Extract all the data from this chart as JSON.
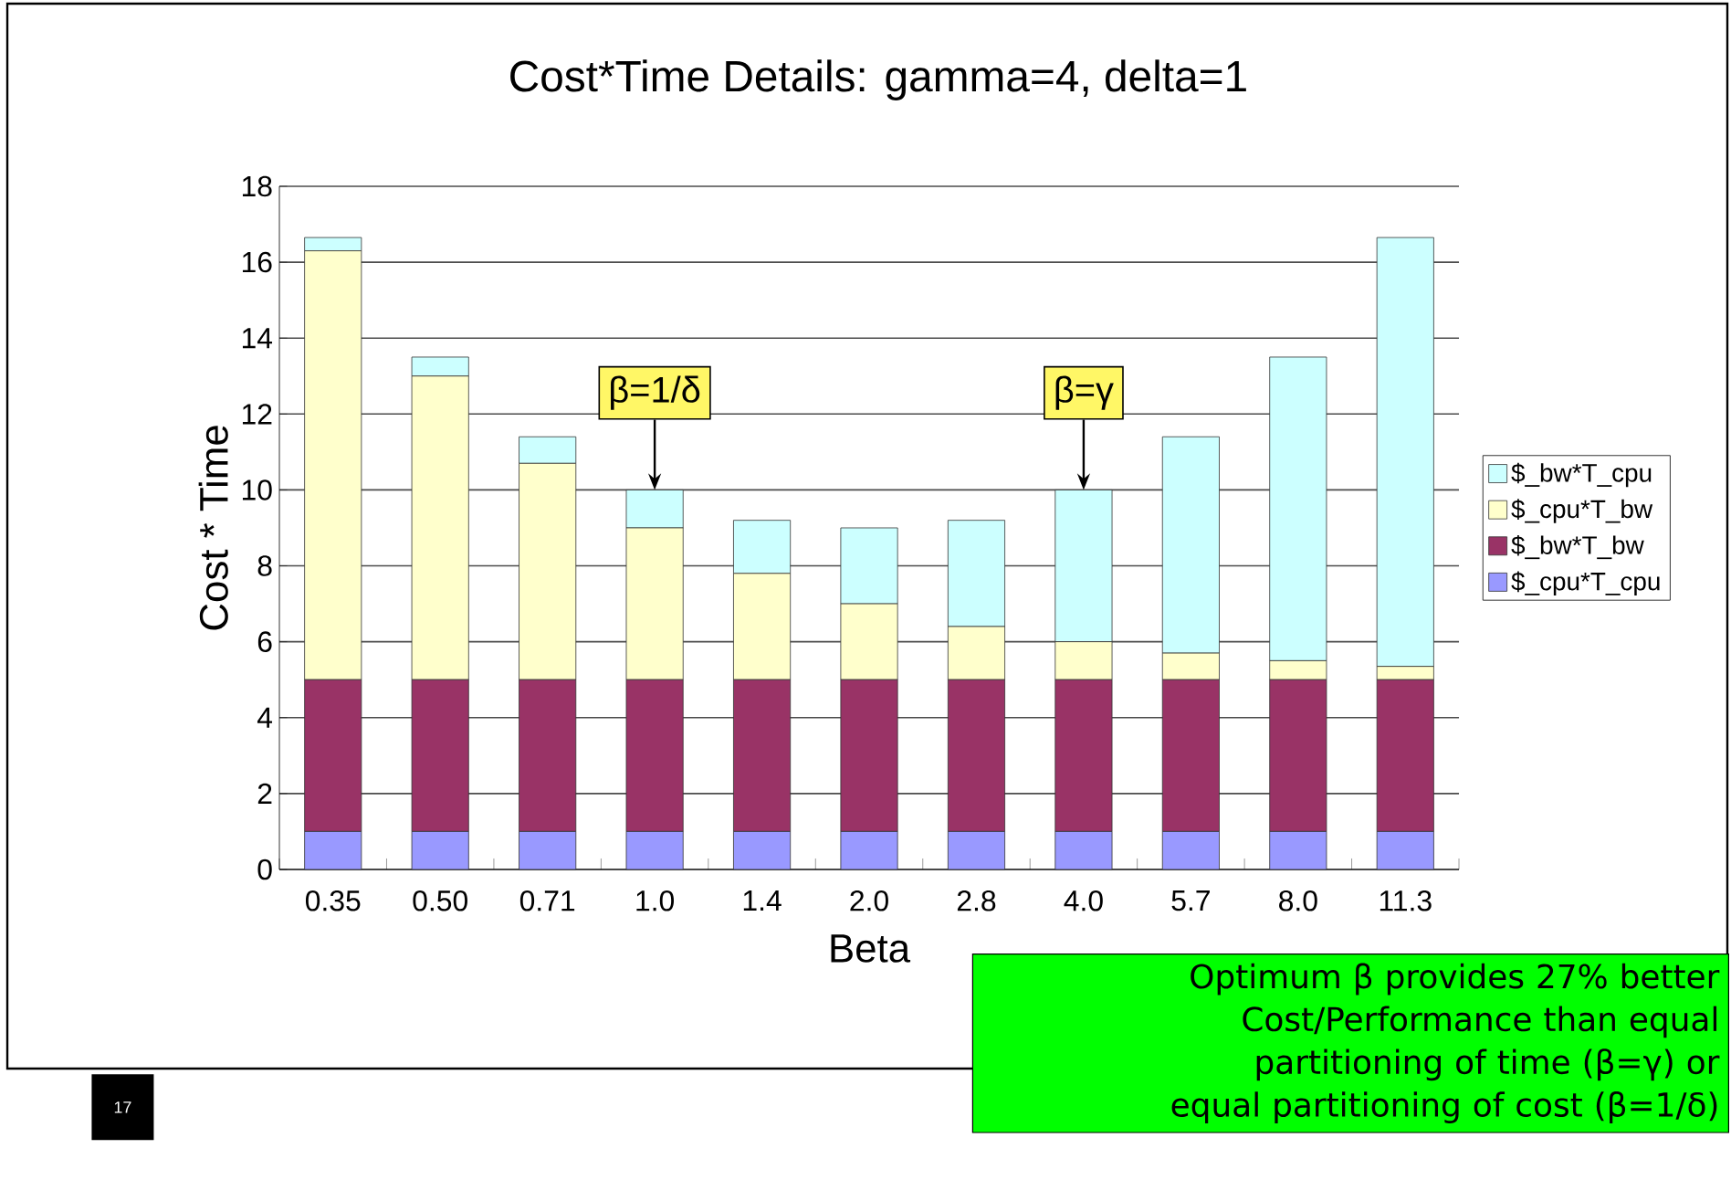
{
  "chart_data": {
    "type": "bar",
    "stacked": true,
    "title": "Cost*Time Details:  gamma=4, delta=1",
    "xlabel": "Beta",
    "ylabel": "Cost * Time",
    "categories": [
      "0.35",
      "0.50",
      "0.71",
      "1.0",
      "1.4",
      "2.0",
      "2.8",
      "4.0",
      "5.7",
      "8.0",
      "11.3"
    ],
    "series": [
      {
        "name": "$_cpu*T_cpu",
        "color": "#9999ff",
        "values": [
          1,
          1,
          1,
          1,
          1,
          1,
          1,
          1,
          1,
          1,
          1
        ]
      },
      {
        "name": "$_bw*T_bw",
        "color": "#993366",
        "values": [
          4,
          4,
          4,
          4,
          4,
          4,
          4,
          4,
          4,
          4,
          4
        ]
      },
      {
        "name": "$_cpu*T_bw",
        "color": "#ffffcc",
        "values": [
          11.3,
          8.0,
          5.7,
          4.0,
          2.8,
          2.0,
          1.4,
          1.0,
          0.7,
          0.5,
          0.35
        ]
      },
      {
        "name": "$_bw*T_cpu",
        "color": "#ccffff",
        "values": [
          0.35,
          0.5,
          0.7,
          1.0,
          1.4,
          2.0,
          2.8,
          4.0,
          5.7,
          8.0,
          11.3
        ]
      }
    ],
    "ylim": [
      0,
      18
    ],
    "yticks": [
      0,
      2,
      4,
      6,
      8,
      10,
      12,
      14,
      16,
      18
    ],
    "grid": "y",
    "legend": "right",
    "annotations": [
      {
        "text": "β=1/δ",
        "x": "1.0",
        "y": 10
      },
      {
        "text": "β=γ",
        "x": "4.0",
        "y": 10
      },
      "Optimum β provides 27% better Cost/Performance than equal partitioning of time (β=γ) or equal partitioning of cost (β=1/δ)",
      "17"
    ]
  }
}
